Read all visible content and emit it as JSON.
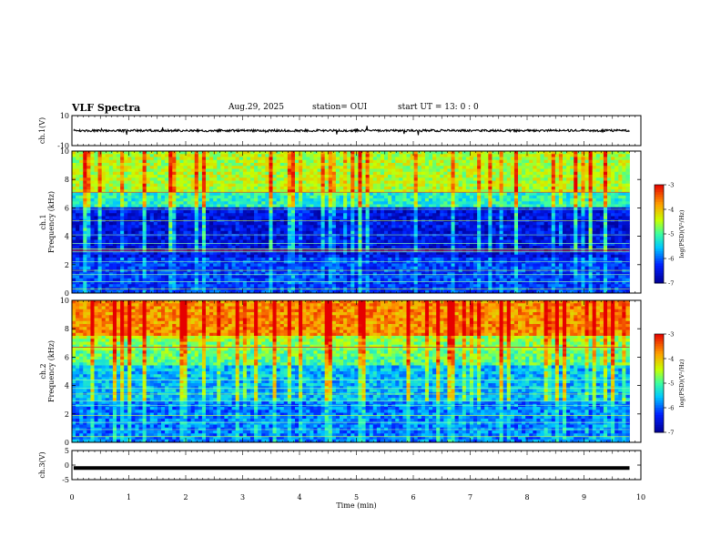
{
  "header": {
    "title": "VLF Spectra",
    "date": "Aug.29, 2025",
    "station": "station= OUI",
    "start_ut": "start  UT  =   13: 0   : 0"
  },
  "chart_data": [
    {
      "type": "line",
      "name": "ch1-waveform",
      "ylabel": "ch.1(V)",
      "ylim": [
        -10,
        10
      ],
      "yticks": [
        "10",
        "-10"
      ],
      "xlim": [
        0,
        10
      ],
      "trace_level": 0,
      "trace_noise_amplitude": 1.5
    },
    {
      "type": "heatmap",
      "name": "ch1-spectrogram",
      "ylabel": "ch.1\nFrequency  (kHz)",
      "ylim": [
        0,
        10
      ],
      "yticks": [
        "0",
        "2",
        "4",
        "6",
        "8",
        "10"
      ],
      "xlim": [
        0,
        10
      ],
      "data_end_min": 9.8,
      "colorbar": {
        "label": "log(PSD)(V²/Hz)",
        "range": [
          -7,
          -3
        ],
        "ticks": [
          "-3",
          "-4",
          "-5",
          "-6",
          "-7"
        ]
      }
    },
    {
      "type": "heatmap",
      "name": "ch2-spectrogram",
      "ylabel": "ch.2\nFrequency  (kHz)",
      "ylim": [
        0,
        10
      ],
      "yticks": [
        "0",
        "2",
        "4",
        "6",
        "8",
        "10"
      ],
      "xlim": [
        0,
        10
      ],
      "data_end_min": 9.8,
      "colorbar": {
        "label": "log(PSD)(V²/Hz)",
        "range": [
          -7,
          -3
        ],
        "ticks": [
          "-3",
          "-4",
          "-5",
          "-6",
          "-7"
        ]
      }
    },
    {
      "type": "line",
      "name": "ch3-waveform",
      "ylabel": "ch.3(V)",
      "ylim": [
        -5,
        5
      ],
      "yticks": [
        "5",
        "0",
        "-5"
      ],
      "xlim": [
        0,
        10
      ],
      "trace_level": -1,
      "xlabel": "Time  (min)",
      "xticks": [
        "0",
        "1",
        "2",
        "3",
        "4",
        "5",
        "6",
        "7",
        "8",
        "9",
        "10"
      ]
    }
  ]
}
